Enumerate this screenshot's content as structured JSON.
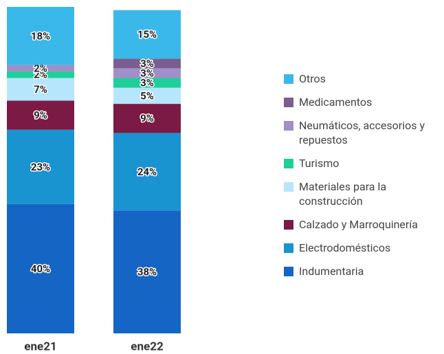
{
  "chart_data": {
    "type": "stacked_bar",
    "categories": [
      "ene21",
      "ene22"
    ],
    "series": [
      {
        "name": "Indumentaria",
        "color": "#1565c4",
        "values": [
          40,
          38
        ],
        "value_labels": [
          "40%",
          "38%"
        ]
      },
      {
        "name": "Electrodomésticos",
        "color": "#1a93d1",
        "values": [
          23,
          24
        ],
        "value_labels": [
          "23%",
          "24%"
        ]
      },
      {
        "name": "Calzado y Marroquinería",
        "color": "#7a1a45",
        "values": [
          9,
          9
        ],
        "value_labels": [
          "9%",
          "9%"
        ]
      },
      {
        "name": "Materiales para la construcción",
        "color": "#b5e6fb",
        "values": [
          7,
          5
        ],
        "value_labels": [
          "7%",
          "5%"
        ]
      },
      {
        "name": "Turismo",
        "color": "#1fcf9a",
        "values": [
          2,
          3
        ],
        "value_labels": [
          "2%",
          "3%"
        ]
      },
      {
        "name": "Neumáticos, accesorios y repuestos",
        "color": "#a18fc9",
        "values": [
          2,
          3
        ],
        "value_labels": [
          "2%",
          "3%"
        ]
      },
      {
        "name": "Medicamentos",
        "color": "#7a5e8f",
        "values": [
          null,
          3
        ],
        "value_labels": [
          null,
          "3%"
        ]
      },
      {
        "name": "Otros",
        "color": "#3bb8ea",
        "values": [
          18,
          15
        ],
        "value_labels": [
          "18%",
          "15%"
        ]
      }
    ]
  }
}
